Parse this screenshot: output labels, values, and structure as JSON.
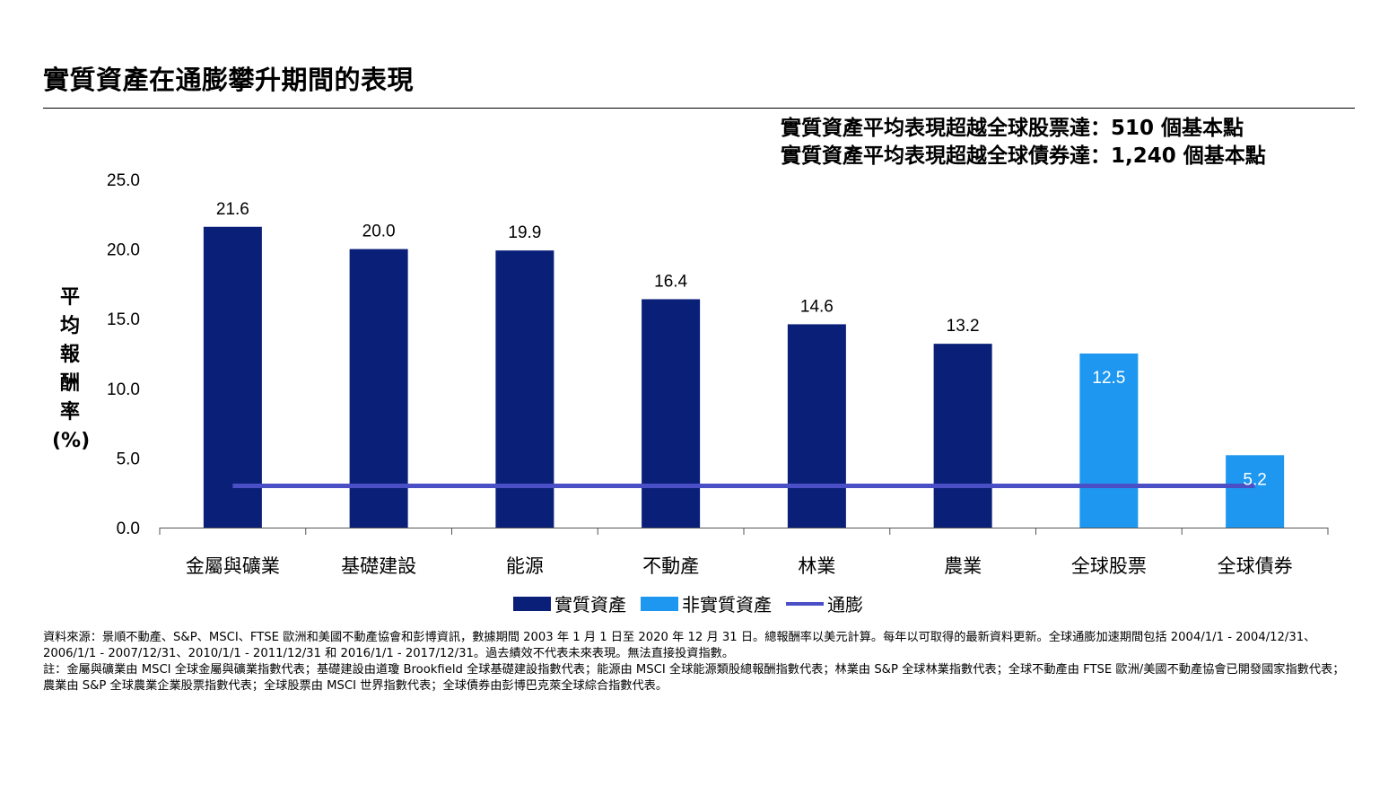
{
  "title": "實質資產在通膨攀升期間的表現",
  "headlines": [
    "實質資產平均表現超越全球股票達：510 個基本點",
    "實質資產平均表現超越全球債券達：1,240 個基本點"
  ],
  "y_axis_title_chars": [
    "平",
    "均",
    "報",
    "酬",
    "率",
    "(%)"
  ],
  "colors": {
    "real_assets": "#0a1f78",
    "non_real_assets": "#1e97f0",
    "inflation": "#4a4fc6"
  },
  "chart_data": {
    "type": "bar",
    "title": "實質資產在通膨攀升期間的表現",
    "ylabel": "平均報酬率 (%)",
    "xlabel": "",
    "ylim": [
      0,
      25
    ],
    "yticks": [
      "0.0",
      "5.0",
      "10.0",
      "15.0",
      "20.0",
      "25.0"
    ],
    "ytick_values": [
      0,
      5,
      10,
      15,
      20,
      25
    ],
    "categories": [
      "金屬與礦業",
      "基礎建設",
      "能源",
      "不動產",
      "林業",
      "農業",
      "全球股票",
      "全球債券"
    ],
    "values": [
      21.6,
      20.0,
      19.9,
      16.4,
      14.6,
      13.2,
      12.5,
      5.2
    ],
    "value_labels": [
      "21.6",
      "20.0",
      "19.9",
      "16.4",
      "14.6",
      "13.2",
      "12.5",
      "5.2"
    ],
    "groups": [
      "real",
      "real",
      "real",
      "real",
      "real",
      "real",
      "non_real",
      "non_real"
    ],
    "inflation_line_value": 3.0,
    "legend": {
      "real": "實質資產",
      "non_real": "非實質資產",
      "inflation": "通膨"
    }
  },
  "footnotes": [
    "資料來源：景順不動產、S&P、MSCI、FTSE 歐洲和美國不動產協會和彭博資訊，數據期間 2003 年 1 月 1 日至 2020 年 12 月 31 日。總報酬率以美元計算。每年以可取得的最新資料更新。全球通膨加速期間包括 2004/1/1 - 2004/12/31、2006/1/1 - 2007/12/31、2010/1/1 - 2011/12/31 和 2016/1/1 - 2017/12/31。過去績效不代表未來表現。無法直接投資指數。",
    "註：金屬與礦業由 MSCI 全球金屬與礦業指數代表；基礎建設由道瓊 Brookfield 全球基礎建設指數代表；能源由 MSCI 全球能源類股總報酬指數代表；林業由 S&P 全球林業指數代表；全球不動產由 FTSE 歐洲/美國不動產協會已開發國家指數代表；農業由 S&P 全球農業企業股票指數代表；全球股票由 MSCI 世界指數代表；全球債券由彭博巴克萊全球綜合指數代表。"
  ]
}
